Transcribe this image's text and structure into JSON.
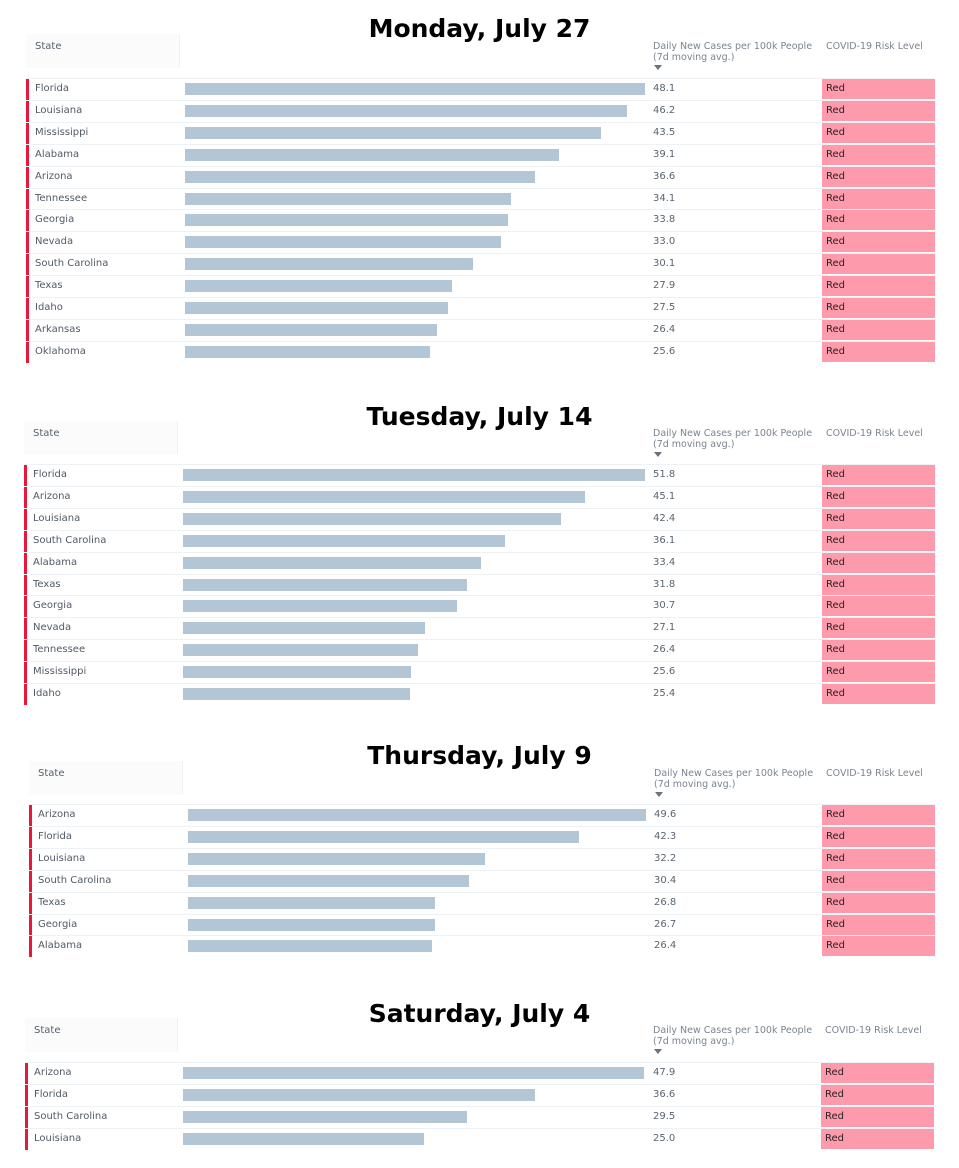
{
  "columns": {
    "state": "State",
    "cases_line1": "Daily New Cases per 100k People",
    "cases_line2": "(7d moving avg.)",
    "risk": "COVID-19 Risk Level",
    "sort_icon": "sort-descending-icon"
  },
  "colors": {
    "bar": "#b2c6d6",
    "risk_red": "#fd9aab",
    "marker": "#e8173c"
  },
  "panels": [
    {
      "title": "Monday, July 27",
      "rows": [
        {
          "state": "Florida",
          "value": 48.1,
          "value_text": "48.1",
          "risk": "Red"
        },
        {
          "state": "Louisiana",
          "value": 46.2,
          "value_text": "46.2",
          "risk": "Red"
        },
        {
          "state": "Mississippi",
          "value": 43.5,
          "value_text": "43.5",
          "risk": "Red"
        },
        {
          "state": "Alabama",
          "value": 39.1,
          "value_text": "39.1",
          "risk": "Red"
        },
        {
          "state": "Arizona",
          "value": 36.6,
          "value_text": "36.6",
          "risk": "Red"
        },
        {
          "state": "Tennessee",
          "value": 34.1,
          "value_text": "34.1",
          "risk": "Red"
        },
        {
          "state": "Georgia",
          "value": 33.8,
          "value_text": "33.8",
          "risk": "Red"
        },
        {
          "state": "Nevada",
          "value": 33.0,
          "value_text": "33.0",
          "risk": "Red"
        },
        {
          "state": "South Carolina",
          "value": 30.1,
          "value_text": "30.1",
          "risk": "Red"
        },
        {
          "state": "Texas",
          "value": 27.9,
          "value_text": "27.9",
          "risk": "Red"
        },
        {
          "state": "Idaho",
          "value": 27.5,
          "value_text": "27.5",
          "risk": "Red"
        },
        {
          "state": "Arkansas",
          "value": 26.4,
          "value_text": "26.4",
          "risk": "Red"
        },
        {
          "state": "Oklahoma",
          "value": 25.6,
          "value_text": "25.6",
          "risk": "Red"
        }
      ]
    },
    {
      "title": "Tuesday, July 14",
      "rows": [
        {
          "state": "Florida",
          "value": 51.8,
          "value_text": "51.8",
          "risk": "Red"
        },
        {
          "state": "Arizona",
          "value": 45.1,
          "value_text": "45.1",
          "risk": "Red"
        },
        {
          "state": "Louisiana",
          "value": 42.4,
          "value_text": "42.4",
          "risk": "Red"
        },
        {
          "state": "South Carolina",
          "value": 36.1,
          "value_text": "36.1",
          "risk": "Red"
        },
        {
          "state": "Alabama",
          "value": 33.4,
          "value_text": "33.4",
          "risk": "Red"
        },
        {
          "state": "Texas",
          "value": 31.8,
          "value_text": "31.8",
          "risk": "Red"
        },
        {
          "state": "Georgia",
          "value": 30.7,
          "value_text": "30.7",
          "risk": "Red"
        },
        {
          "state": "Nevada",
          "value": 27.1,
          "value_text": "27.1",
          "risk": "Red"
        },
        {
          "state": "Tennessee",
          "value": 26.4,
          "value_text": "26.4",
          "risk": "Red"
        },
        {
          "state": "Mississippi",
          "value": 25.6,
          "value_text": "25.6",
          "risk": "Red"
        },
        {
          "state": "Idaho",
          "value": 25.4,
          "value_text": "25.4",
          "risk": "Red"
        }
      ]
    },
    {
      "title": "Thursday, July 9",
      "rows": [
        {
          "state": "Arizona",
          "value": 49.6,
          "value_text": "49.6",
          "risk": "Red"
        },
        {
          "state": "Florida",
          "value": 42.3,
          "value_text": "42.3",
          "risk": "Red"
        },
        {
          "state": "Louisiana",
          "value": 32.2,
          "value_text": "32.2",
          "risk": "Red"
        },
        {
          "state": "South Carolina",
          "value": 30.4,
          "value_text": "30.4",
          "risk": "Red"
        },
        {
          "state": "Texas",
          "value": 26.8,
          "value_text": "26.8",
          "risk": "Red"
        },
        {
          "state": "Georgia",
          "value": 26.7,
          "value_text": "26.7",
          "risk": "Red"
        },
        {
          "state": "Alabama",
          "value": 26.4,
          "value_text": "26.4",
          "risk": "Red"
        }
      ]
    },
    {
      "title": "Saturday, July 4",
      "rows": [
        {
          "state": "Arizona",
          "value": 47.9,
          "value_text": "47.9",
          "risk": "Red"
        },
        {
          "state": "Florida",
          "value": 36.6,
          "value_text": "36.6",
          "risk": "Red"
        },
        {
          "state": "South Carolina",
          "value": 29.5,
          "value_text": "29.5",
          "risk": "Red"
        },
        {
          "state": "Louisiana",
          "value": 25.0,
          "value_text": "25.0",
          "risk": "Red"
        }
      ]
    }
  ]
}
